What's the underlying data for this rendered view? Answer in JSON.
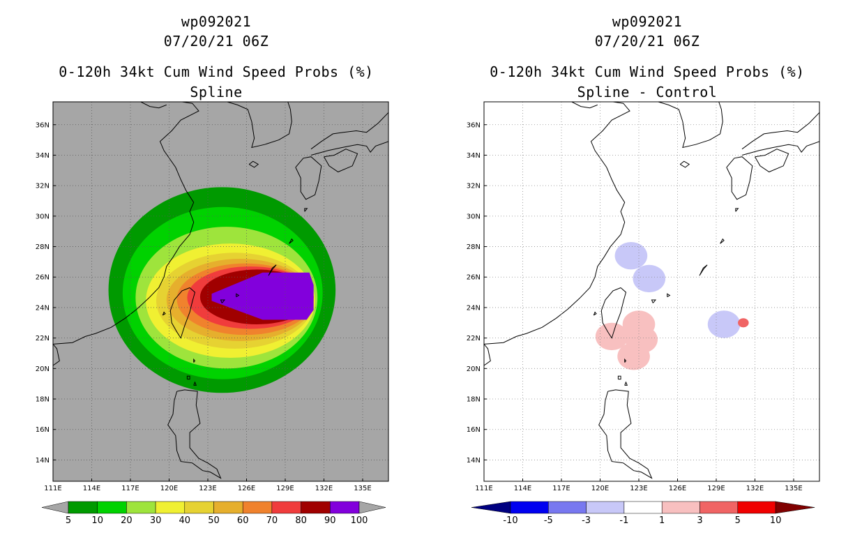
{
  "left_panel": {
    "storm_id": "wp092021",
    "datetime": "07/20/21 06Z",
    "title": "0-120h 34kt Cum Wind Speed Probs (%)",
    "subtitle": "Spline"
  },
  "right_panel": {
    "storm_id": "wp092021",
    "datetime": "07/20/21 06Z",
    "title": "0-120h 34kt Cum Wind Speed Probs (%)",
    "subtitle": "Spline - Control"
  },
  "colors": {
    "land_bg": "#a6a6a6",
    "prob_5": "#009a00",
    "prob_10": "#00d200",
    "prob_20": "#9ee43c",
    "prob_30": "#f0f032",
    "prob_40": "#e6d232",
    "prob_50": "#e6af2d",
    "prob_60": "#f0822d",
    "prob_70": "#f03c3c",
    "prob_80": "#a00000",
    "prob_90": "#8200dc",
    "diff_neg": "#c8c8f8",
    "diff_pos": "#f8c0c0",
    "diff_pos_strong": "#f06464"
  },
  "chart_data": [
    {
      "type": "heatmap",
      "panel": "left",
      "title": "0-120h 34kt Cum Wind Speed Probs (%)",
      "subtitle": "Spline",
      "x_ticks": [
        "111E",
        "114E",
        "117E",
        "120E",
        "123E",
        "126E",
        "129E",
        "132E",
        "135E"
      ],
      "y_ticks": [
        "14N",
        "16N",
        "18N",
        "20N",
        "22N",
        "24N",
        "26N",
        "28N",
        "30N",
        "32N",
        "34N",
        "36N"
      ],
      "xlim": [
        111,
        137
      ],
      "ylim": [
        12.6,
        37.5
      ],
      "colorbar_levels": [
        "5",
        "10",
        "20",
        "30",
        "40",
        "50",
        "60",
        "70",
        "80",
        "90",
        "100"
      ],
      "contours": [
        {
          "level": 5,
          "lon_range": [
            115.3,
            132.9
          ],
          "lat_range": [
            18.4,
            31.9
          ]
        },
        {
          "level": 10,
          "lon_range": [
            116.4,
            131.9
          ],
          "lat_range": [
            19.3,
            30.6
          ]
        },
        {
          "level": 20,
          "lon_range": [
            117.4,
            131.5
          ],
          "lat_range": [
            20.0,
            29.3
          ]
        },
        {
          "level": 30,
          "lon_range": [
            118.2,
            131.3
          ],
          "lat_range": [
            20.7,
            28.2
          ]
        },
        {
          "level": 40,
          "lon_range": [
            119.0,
            131.2
          ],
          "lat_range": [
            21.3,
            27.6
          ]
        },
        {
          "level": 50,
          "lon_range": [
            119.8,
            131.2
          ],
          "lat_range": [
            21.8,
            27.2
          ]
        },
        {
          "level": 60,
          "lon_range": [
            120.6,
            131.2
          ],
          "lat_range": [
            22.2,
            26.9
          ]
        },
        {
          "level": 70,
          "lon_range": [
            121.4,
            131.2
          ],
          "lat_range": [
            22.6,
            26.7
          ]
        },
        {
          "level": 80,
          "lon_range": [
            122.4,
            131.2
          ],
          "lat_range": [
            22.9,
            26.5
          ]
        },
        {
          "level": 90,
          "lon_range": [
            123.3,
            131.2
          ],
          "lat_range": [
            23.2,
            26.3
          ]
        }
      ]
    },
    {
      "type": "heatmap",
      "panel": "right",
      "title": "0-120h 34kt Cum Wind Speed Probs (%)",
      "subtitle": "Spline - Control",
      "x_ticks": [
        "111E",
        "114E",
        "117E",
        "120E",
        "123E",
        "126E",
        "129E",
        "132E",
        "135E"
      ],
      "y_ticks": [
        "14N",
        "16N",
        "18N",
        "20N",
        "22N",
        "24N",
        "26N",
        "28N",
        "30N",
        "32N",
        "34N",
        "36N"
      ],
      "xlim": [
        111,
        137
      ],
      "ylim": [
        12.6,
        37.5
      ],
      "colorbar_levels": [
        "-10",
        "-5",
        "-3",
        "-1",
        "1",
        "3",
        "5",
        "10"
      ],
      "anomalies": [
        {
          "sign": "negative",
          "value": -2,
          "lon": 123.8,
          "lat": 25.9
        },
        {
          "sign": "negative",
          "value": -2,
          "lon": 122.4,
          "lat": 27.4
        },
        {
          "sign": "negative",
          "value": -2,
          "lon": 129.6,
          "lat": 22.9
        },
        {
          "sign": "positive",
          "value": 2,
          "lon": 123.0,
          "lat": 22.9
        },
        {
          "sign": "positive",
          "value": 2,
          "lon": 123.2,
          "lat": 21.9
        },
        {
          "sign": "positive",
          "value": 2,
          "lon": 122.6,
          "lat": 20.8
        },
        {
          "sign": "positive",
          "value": 2,
          "lon": 120.9,
          "lat": 22.1
        },
        {
          "sign": "positive",
          "value": 4,
          "lon": 131.1,
          "lat": 23.0
        }
      ]
    }
  ]
}
